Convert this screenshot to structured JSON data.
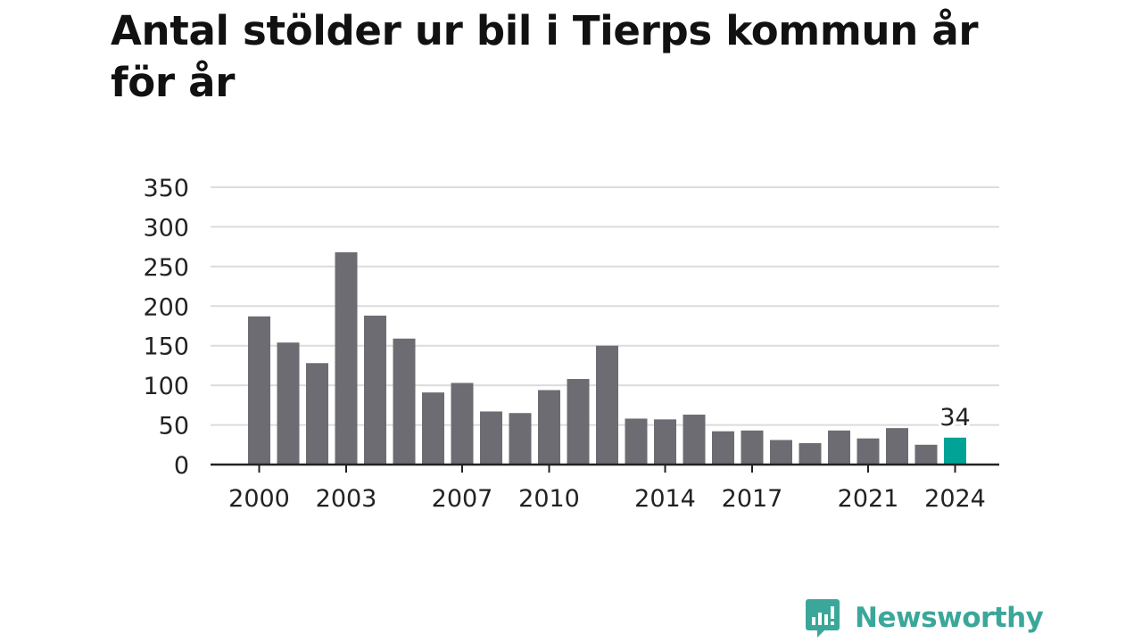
{
  "title": "Antal stölder ur bil i Tierps kommun år för år",
  "colors": {
    "bar": "#6d6c72",
    "highlight": "#00a396",
    "grid": "#dcdcdc",
    "axis": "#222222",
    "brand": "#3aa79a"
  },
  "brand": {
    "name": "Newsworthy",
    "icon": "newsworthy-chat-bars-icon"
  },
  "chart_data": {
    "type": "bar",
    "x": [
      2000,
      2001,
      2002,
      2003,
      2004,
      2005,
      2006,
      2007,
      2008,
      2009,
      2010,
      2011,
      2012,
      2013,
      2014,
      2015,
      2016,
      2017,
      2018,
      2019,
      2020,
      2021,
      2022,
      2023,
      2024
    ],
    "values": [
      187,
      154,
      128,
      268,
      188,
      159,
      91,
      103,
      67,
      65,
      94,
      108,
      150,
      58,
      57,
      63,
      42,
      43,
      31,
      27,
      43,
      33,
      46,
      25,
      34
    ],
    "highlight_index": 24,
    "highlight_label": "34",
    "x_ticks": [
      2000,
      2003,
      2007,
      2010,
      2014,
      2017,
      2021,
      2024
    ],
    "y_ticks": [
      0,
      50,
      100,
      150,
      200,
      250,
      300,
      350
    ],
    "ylim": [
      0,
      350
    ],
    "grid": true,
    "legend": "none"
  }
}
